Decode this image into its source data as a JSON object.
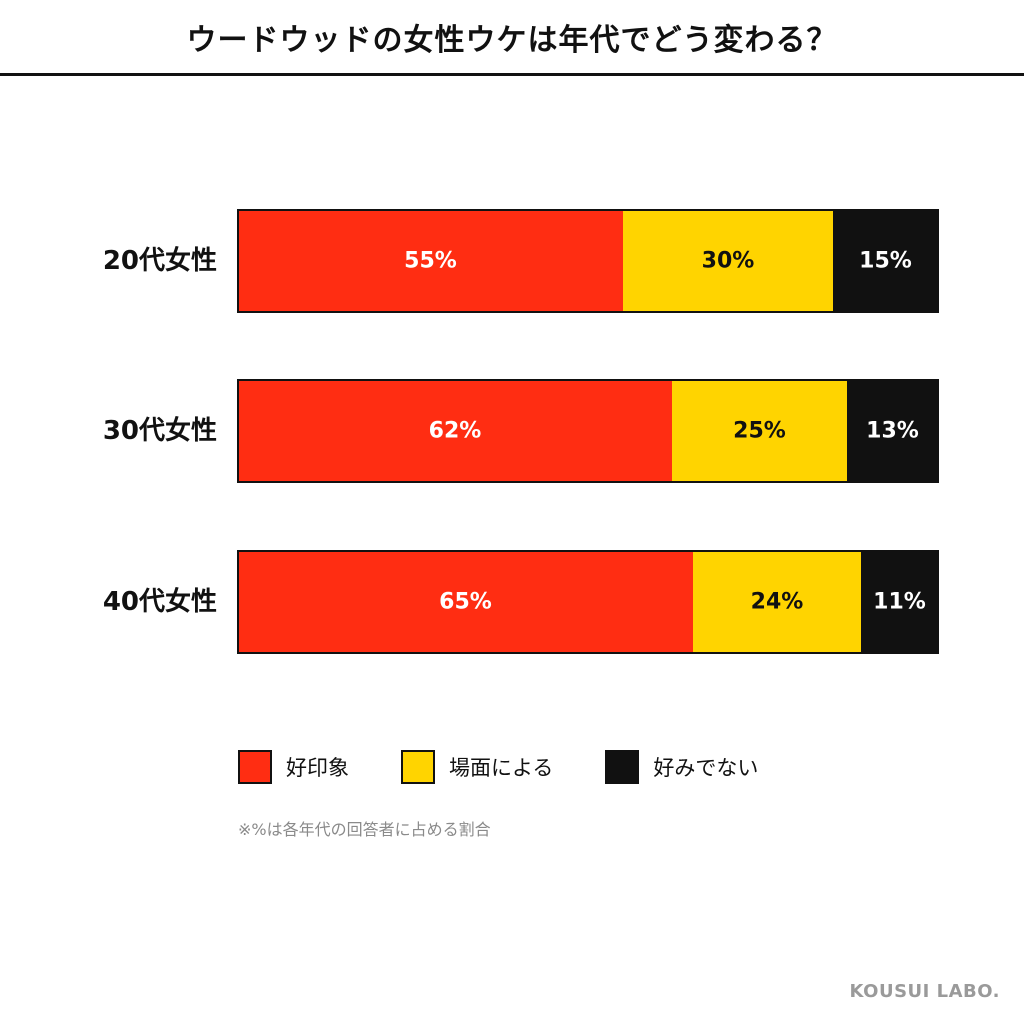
{
  "title": "ウードウッドの女性ウケは年代でどう変わる？",
  "chart_data": {
    "type": "bar",
    "orientation": "horizontal",
    "stacked": true,
    "categories": [
      "20代女性",
      "30代女性",
      "40代女性"
    ],
    "series": [
      {
        "name": "好印象",
        "values": [
          55,
          62,
          65
        ],
        "color": "#ff2d12",
        "label_color": "#ffffff"
      },
      {
        "name": "場面による",
        "values": [
          30,
          25,
          24
        ],
        "color": "#ffd400",
        "label_color": "#111111"
      },
      {
        "name": "好みでない",
        "values": [
          15,
          13,
          11
        ],
        "color": "#111111",
        "label_color": "#ffffff"
      }
    ],
    "value_suffix": "%",
    "xlim": [
      0,
      100
    ],
    "legend_position": "bottom"
  },
  "note": "※%は各年代の回答者に占める割合",
  "brand": "KOUSUI LABO."
}
